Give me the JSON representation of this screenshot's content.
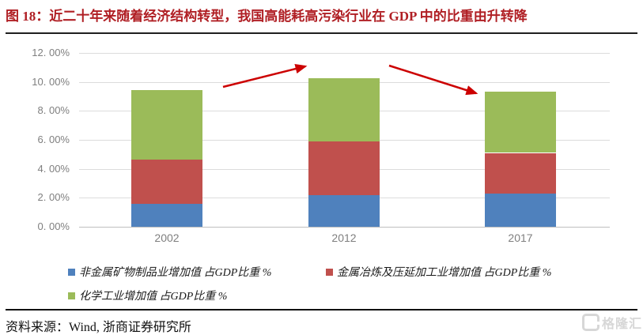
{
  "title": {
    "text": "图 18：近二十年来随着经济结构转型，我国高能耗高污染行业在 GDP 中的比重由升转降"
  },
  "chart_data": {
    "type": "bar",
    "stacked": true,
    "categories": [
      "2002",
      "2012",
      "2017"
    ],
    "series": [
      {
        "name": "非金属矿物制品业增加值 占GDP比重 %",
        "color": "#4F81BD",
        "values": [
          1.6,
          2.2,
          2.3
        ]
      },
      {
        "name": "金属冶炼及压延加工业增加值 占GDP比重 %",
        "color": "#C0504D",
        "values": [
          3.05,
          3.7,
          2.8
        ]
      },
      {
        "name": "化学工业增加值 占GDP比重 %",
        "color": "#9BBB59",
        "values": [
          4.8,
          4.35,
          4.25
        ]
      }
    ],
    "stack_totals": [
      9.45,
      10.25,
      9.35
    ],
    "ylabel": "",
    "xlabel": "",
    "ylim": [
      0,
      12
    ],
    "ytick_step": 2,
    "ytick_labels": [
      "0. 00%",
      "2. 00%",
      "4. 00%",
      "6. 00%",
      "8. 00%",
      "10. 00%",
      "12. 00%"
    ],
    "grid": true,
    "legend_position": "bottom",
    "arrow_color": "#CC0000",
    "annotations": [
      {
        "type": "arrow",
        "direction": "up",
        "meaning": "share rose from 2002 to 2012",
        "from": [
          282,
          110
        ],
        "to": [
          386,
          84
        ]
      },
      {
        "type": "arrow",
        "direction": "down",
        "meaning": "share fell from 2012 to 2017",
        "from": [
          492,
          83
        ],
        "to": [
          602,
          118
        ]
      }
    ]
  },
  "legend": {
    "items": [
      {
        "label": "非金属矿物制品业增加值 占GDP比重 %",
        "color": "#4F81BD"
      },
      {
        "label": "金属冶炼及压延加工业增加值 占GDP比重 %",
        "color": "#C0504D"
      },
      {
        "label": "化学工业增加值 占GDP比重 %",
        "color": "#9BBB59"
      }
    ]
  },
  "footer": {
    "source": "资料来源：Wind, 浙商证券研究所"
  },
  "watermark": {
    "text": "格隆汇",
    "icon": "gelonghui-g-logo"
  }
}
